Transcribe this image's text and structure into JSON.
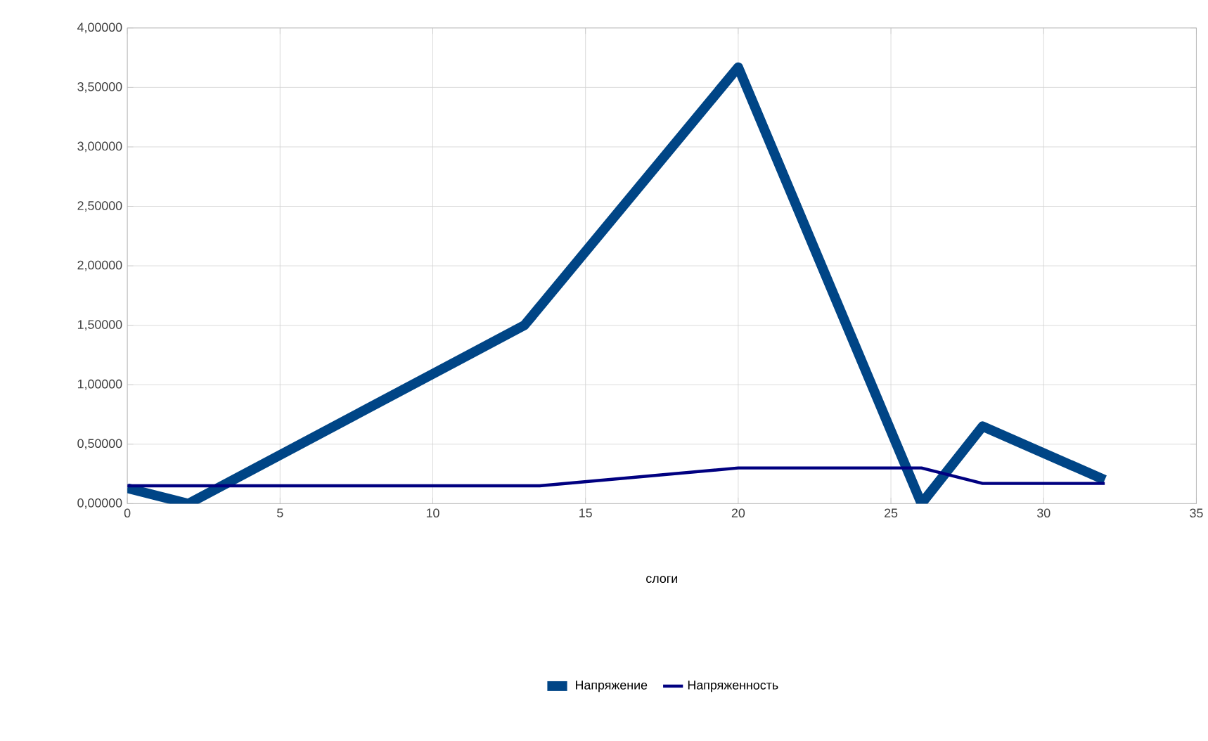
{
  "chart_data": {
    "type": "line",
    "xlabel": "слоги",
    "series": [
      {
        "name": "Напряжение",
        "color": "#004586",
        "x": [
          0,
          2,
          13,
          20,
          26,
          28,
          32
        ],
        "values": [
          0.13,
          0.0,
          1.5,
          3.67,
          0.0,
          0.65,
          0.2
        ]
      },
      {
        "name": "Напряженность",
        "color": "#000080",
        "x": [
          0,
          13.5,
          20,
          26,
          28,
          32
        ],
        "values": [
          0.15,
          0.15,
          0.3,
          0.3,
          0.17,
          0.17
        ]
      }
    ],
    "xlim": [
      0,
      35
    ],
    "xticks": [
      0,
      5,
      10,
      15,
      20,
      25,
      30,
      35
    ],
    "ylim": [
      0,
      4
    ],
    "yticks": [
      {
        "value": 0,
        "label": "0,00000"
      },
      {
        "value": 0.5,
        "label": "0,50000"
      },
      {
        "value": 1,
        "label": "1,00000"
      },
      {
        "value": 1.5,
        "label": "1,50000"
      },
      {
        "value": 2,
        "label": "2,00000"
      },
      {
        "value": 2.5,
        "label": "2,50000"
      },
      {
        "value": 3,
        "label": "3,00000"
      },
      {
        "value": 3.5,
        "label": "3,50000"
      },
      {
        "value": 4,
        "label": "4,00000"
      }
    ],
    "grid": true,
    "legend": "bottom",
    "marker": "none",
    "line_style": "solid"
  }
}
